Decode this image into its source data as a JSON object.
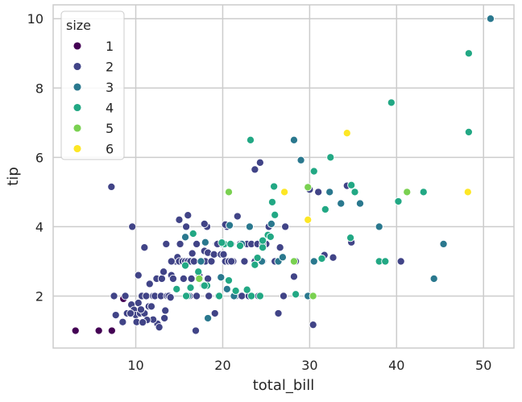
{
  "chart_data": {
    "type": "scatter",
    "title": "",
    "xlabel": "total_bill",
    "ylabel": "tip",
    "xlim": [
      0.5,
      53.5
    ],
    "ylim": [
      0.5,
      10.4
    ],
    "xticks": [
      10,
      20,
      30,
      40,
      50
    ],
    "yticks": [
      2,
      4,
      6,
      8,
      10
    ],
    "grid": true,
    "legend": {
      "title": "size",
      "placement": "top-left",
      "entries": [
        {
          "label": "1",
          "value": 1
        },
        {
          "label": "2",
          "value": 2
        },
        {
          "label": "3",
          "value": 3
        },
        {
          "label": "4",
          "value": 4
        },
        {
          "label": "5",
          "value": 5
        },
        {
          "label": "6",
          "value": 6
        }
      ]
    },
    "colors": {
      "1": "#440154",
      "2": "#414487",
      "3": "#2a788e",
      "4": "#22a884",
      "5": "#7ad151",
      "6": "#fde725"
    },
    "series": [
      {
        "name": "1",
        "points": [
          [
            3.07,
            1.0
          ],
          [
            7.25,
            1.0
          ],
          [
            5.75,
            1.0
          ],
          [
            8.58,
            1.92
          ]
        ]
      },
      {
        "name": "2",
        "points": [
          [
            7.2,
            5.15
          ],
          [
            9.6,
            4.0
          ],
          [
            11.0,
            3.4
          ],
          [
            7.5,
            2.0
          ],
          [
            7.7,
            1.45
          ],
          [
            8.5,
            1.25
          ],
          [
            9.0,
            1.5
          ],
          [
            9.5,
            1.75
          ],
          [
            9.8,
            1.6
          ],
          [
            10.0,
            1.45
          ],
          [
            10.1,
            1.25
          ],
          [
            10.3,
            1.8
          ],
          [
            10.5,
            1.5
          ],
          [
            10.3,
            2.6
          ],
          [
            10.7,
            2.0
          ],
          [
            11.0,
            1.5
          ],
          [
            11.2,
            2.0
          ],
          [
            11.5,
            1.7
          ],
          [
            11.6,
            2.35
          ],
          [
            11.8,
            1.7
          ],
          [
            12.0,
            2.0
          ],
          [
            12.2,
            2.0
          ],
          [
            12.4,
            2.5
          ],
          [
            12.5,
            1.2
          ],
          [
            12.7,
            1.1
          ],
          [
            12.9,
            2.0
          ],
          [
            13.0,
            2.5
          ],
          [
            13.2,
            2.7
          ],
          [
            13.4,
            1.58
          ],
          [
            13.5,
            3.5
          ],
          [
            13.6,
            2.0
          ],
          [
            13.8,
            2.0
          ],
          [
            14.0,
            1.96
          ],
          [
            14.1,
            2.6
          ],
          [
            14.3,
            2.5
          ],
          [
            14.5,
            3.0
          ],
          [
            14.6,
            3.0
          ],
          [
            14.8,
            3.12
          ],
          [
            15.0,
            3.0
          ],
          [
            15.1,
            3.5
          ],
          [
            15.4,
            3.0
          ],
          [
            15.5,
            2.5
          ],
          [
            15.7,
            3.0
          ],
          [
            15.8,
            4.0
          ],
          [
            16.0,
            3.0
          ],
          [
            16.2,
            2.0
          ],
          [
            16.3,
            3.0
          ],
          [
            16.4,
            2.5
          ],
          [
            16.5,
            3.23
          ],
          [
            16.7,
            3.0
          ],
          [
            16.9,
            1.0
          ],
          [
            17.0,
            3.5
          ],
          [
            17.3,
            2.6
          ],
          [
            17.5,
            3.0
          ],
          [
            17.8,
            2.3
          ],
          [
            17.9,
            3.3
          ],
          [
            18.0,
            3.0
          ],
          [
            18.2,
            4.0
          ],
          [
            18.3,
            3.25
          ],
          [
            18.4,
            2.0
          ],
          [
            18.7,
            3.0
          ],
          [
            19.0,
            3.2
          ],
          [
            19.1,
            1.5
          ],
          [
            19.3,
            3.5
          ],
          [
            19.5,
            2.0
          ],
          [
            19.8,
            3.2
          ],
          [
            20.0,
            3.5
          ],
          [
            20.1,
            3.2
          ],
          [
            20.3,
            3.0
          ],
          [
            20.5,
            4.0
          ],
          [
            20.7,
            3.0
          ],
          [
            21.0,
            3.5
          ],
          [
            21.2,
            3.0
          ],
          [
            21.5,
            2.0
          ],
          [
            21.7,
            4.3
          ],
          [
            22.0,
            3.5
          ],
          [
            22.2,
            2.0
          ],
          [
            22.5,
            3.0
          ],
          [
            22.8,
            3.5
          ],
          [
            23.0,
            2.0
          ],
          [
            23.3,
            3.5
          ],
          [
            23.7,
            5.65
          ],
          [
            24.0,
            3.5
          ],
          [
            24.1,
            2.0
          ],
          [
            24.3,
            5.85
          ],
          [
            24.6,
            3.0
          ],
          [
            25.0,
            3.5
          ],
          [
            25.3,
            4.0
          ],
          [
            26.0,
            3.0
          ],
          [
            26.4,
            1.5
          ],
          [
            26.6,
            3.4
          ],
          [
            27.0,
            2.0
          ],
          [
            27.2,
            4.0
          ],
          [
            28.2,
            2.56
          ],
          [
            28.4,
            3.0
          ],
          [
            30.1,
            2.0
          ],
          [
            30.4,
            1.17
          ],
          [
            30.0,
            5.07
          ],
          [
            31.0,
            5.0
          ],
          [
            31.7,
            3.18
          ],
          [
            32.7,
            3.11
          ],
          [
            34.8,
            3.55
          ],
          [
            40.5,
            3.0
          ],
          [
            34.3,
            5.18
          ],
          [
            14.1,
            3.0
          ],
          [
            15.0,
            4.2
          ],
          [
            16.0,
            4.33
          ],
          [
            17.9,
            4.08
          ],
          [
            19.4,
            3.5
          ],
          [
            20.3,
            4.06
          ],
          [
            21.0,
            3.0
          ],
          [
            23.7,
            3.0
          ],
          [
            18.3,
            2.5
          ],
          [
            17.0,
            2.0
          ],
          [
            12.0,
            1.32
          ],
          [
            11.3,
            1.31
          ],
          [
            10.8,
            1.24
          ],
          [
            8.8,
            2.0
          ],
          [
            9.4,
            1.5
          ],
          [
            10.6,
            1.61
          ],
          [
            13.3,
            1.36
          ]
        ]
      },
      {
        "name": "3",
        "points": [
          [
            50.81,
            10.0
          ],
          [
            28.2,
            6.5
          ],
          [
            29.0,
            5.92
          ],
          [
            33.6,
            4.67
          ],
          [
            35.8,
            4.67
          ],
          [
            38.0,
            4.0
          ],
          [
            45.4,
            3.5
          ],
          [
            44.3,
            2.5
          ],
          [
            32.3,
            5.0
          ],
          [
            24.6,
            3.48
          ],
          [
            20.5,
            2.2
          ],
          [
            18.3,
            1.36
          ],
          [
            26.4,
            3.0
          ],
          [
            25.6,
            4.08
          ],
          [
            29.8,
            2.0
          ],
          [
            30.5,
            3.0
          ],
          [
            17.5,
            3.0
          ],
          [
            22.2,
            3.5
          ],
          [
            21.3,
            2.0
          ],
          [
            16.0,
            2.0
          ],
          [
            23.1,
            4.0
          ],
          [
            24.5,
            3.0
          ],
          [
            18.0,
            3.55
          ],
          [
            15.7,
            3.7
          ],
          [
            20.8,
            4.04
          ],
          [
            26.9,
            3.12
          ],
          [
            19.8,
            2.54
          ]
        ]
      },
      {
        "name": "4",
        "points": [
          [
            23.2,
            6.5
          ],
          [
            32.4,
            6.0
          ],
          [
            39.4,
            7.58
          ],
          [
            48.3,
            9.0
          ],
          [
            48.3,
            6.73
          ],
          [
            34.8,
            5.2
          ],
          [
            35.2,
            5.0
          ],
          [
            40.2,
            4.73
          ],
          [
            43.1,
            5.0
          ],
          [
            25.7,
            4.71
          ],
          [
            25.9,
            5.16
          ],
          [
            30.5,
            5.6
          ],
          [
            31.4,
            3.08
          ],
          [
            31.8,
            4.5
          ],
          [
            34.7,
            3.68
          ],
          [
            38.0,
            3.0
          ],
          [
            38.7,
            3.0
          ],
          [
            25.2,
            3.76
          ],
          [
            24.0,
            3.1
          ],
          [
            23.7,
            2.9
          ],
          [
            20.7,
            2.45
          ],
          [
            18.2,
            2.3
          ],
          [
            16.6,
            3.8
          ],
          [
            15.7,
            2.88
          ],
          [
            16.3,
            2.24
          ],
          [
            19.6,
            2.0
          ],
          [
            22.8,
            2.18
          ],
          [
            23.3,
            2.0
          ],
          [
            24.3,
            2.0
          ],
          [
            28.4,
            2.05
          ],
          [
            24.6,
            3.4
          ],
          [
            20.2,
            3.5
          ],
          [
            17.2,
            2.7
          ],
          [
            15.8,
            2.0
          ],
          [
            14.7,
            2.2
          ],
          [
            21.5,
            2.15
          ],
          [
            25.5,
            3.71
          ],
          [
            26.0,
            4.34
          ],
          [
            19.9,
            3.54
          ],
          [
            17.9,
            2.3
          ],
          [
            22.0,
            3.45
          ],
          [
            24.6,
            3.6
          ],
          [
            20.9,
            3.5
          ]
        ]
      },
      {
        "name": "5",
        "points": [
          [
            20.7,
            5.0
          ],
          [
            29.8,
            5.14
          ],
          [
            41.2,
            5.0
          ],
          [
            28.2,
            3.0
          ],
          [
            30.4,
            2.0
          ],
          [
            17.3,
            2.5
          ]
        ]
      },
      {
        "name": "6",
        "points": [
          [
            34.3,
            6.7
          ],
          [
            27.1,
            5.0
          ],
          [
            48.2,
            5.0
          ],
          [
            29.8,
            4.2
          ]
        ]
      }
    ]
  }
}
